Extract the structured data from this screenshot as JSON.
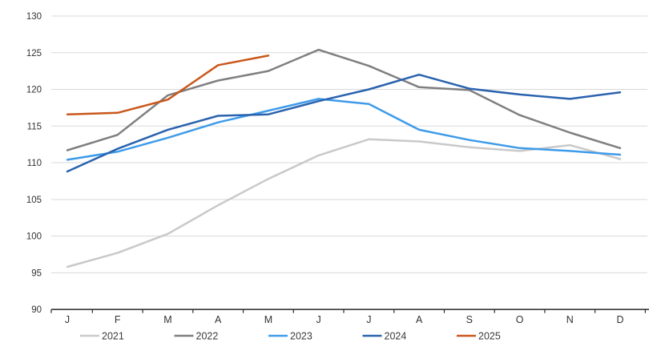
{
  "chart_data": {
    "type": "line",
    "x_tick_labels": [
      "J",
      "F",
      "M",
      "A",
      "M",
      "J",
      "J",
      "A",
      "S",
      "O",
      "N",
      "D"
    ],
    "y_ticks": [
      90,
      95,
      100,
      105,
      110,
      115,
      120,
      125,
      130
    ],
    "ylim": [
      90,
      130
    ],
    "grid": "horizontal",
    "legend_position": "bottom",
    "series": [
      {
        "name": "2021",
        "color": "#c9c9c9",
        "values": [
          95.8,
          97.7,
          100.3,
          104.2,
          107.8,
          111.0,
          113.2,
          112.9,
          112.1,
          111.6,
          112.4,
          110.5
        ]
      },
      {
        "name": "2022",
        "color": "#7f7f7f",
        "values": [
          111.7,
          113.8,
          119.2,
          121.2,
          122.5,
          125.4,
          123.2,
          120.3,
          119.9,
          116.5,
          114.1,
          112.0
        ]
      },
      {
        "name": "2023",
        "color": "#3e9be9",
        "values": [
          110.4,
          111.5,
          113.4,
          115.5,
          117.1,
          118.7,
          118.0,
          114.5,
          113.1,
          112.0,
          111.6,
          111.1
        ]
      },
      {
        "name": "2024",
        "color": "#2a62ae",
        "values": [
          108.8,
          111.9,
          114.5,
          116.4,
          116.6,
          118.4,
          120.0,
          122.0,
          120.1,
          119.3,
          118.7,
          119.6
        ]
      },
      {
        "name": "2025",
        "color": "#c9571b",
        "values": [
          116.6,
          116.8,
          118.6,
          123.3,
          124.6
        ]
      }
    ]
  },
  "style": {
    "gridline_color": "#d9d9d9",
    "axis_color": "#262626",
    "tick_label_color": "#333333",
    "legend_label_color": "#3a3a3a"
  }
}
